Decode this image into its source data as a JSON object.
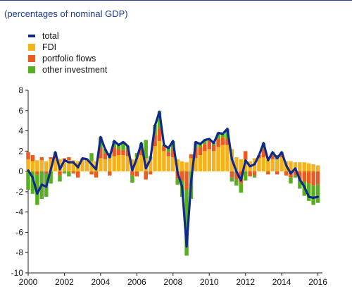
{
  "chart_data": {
    "type": "bar",
    "subtitle": "(percentages of nominal GDP)",
    "ylim": [
      -10,
      8
    ],
    "y_ticks": [
      8,
      6,
      4,
      2,
      0,
      -2,
      -4,
      -6,
      -8,
      -10
    ],
    "x_ticks": [
      "2000",
      "2002",
      "2004",
      "2006",
      "2008",
      "2010",
      "2012",
      "2014",
      "2016"
    ],
    "x_range": [
      2000.0,
      2016.25
    ],
    "grid": false,
    "stacked": true,
    "legend_position": "top-left",
    "x": [
      2000.0,
      2000.25,
      2000.5,
      2000.75,
      2001.0,
      2001.25,
      2001.5,
      2001.75,
      2002.0,
      2002.25,
      2002.5,
      2002.75,
      2003.0,
      2003.25,
      2003.5,
      2003.75,
      2004.0,
      2004.25,
      2004.5,
      2004.75,
      2005.0,
      2005.25,
      2005.5,
      2005.75,
      2006.0,
      2006.25,
      2006.5,
      2006.75,
      2007.0,
      2007.25,
      2007.5,
      2007.75,
      2008.0,
      2008.25,
      2008.5,
      2008.75,
      2009.0,
      2009.25,
      2009.5,
      2009.75,
      2010.0,
      2010.25,
      2010.5,
      2010.75,
      2011.0,
      2011.25,
      2011.5,
      2011.75,
      2012.0,
      2012.25,
      2012.5,
      2012.75,
      2013.0,
      2013.25,
      2013.5,
      2013.75,
      2014.0,
      2014.25,
      2014.5,
      2014.75,
      2015.0,
      2015.25,
      2015.5,
      2015.75,
      2016.0
    ],
    "series": [
      {
        "name": "total",
        "type": "line",
        "color": "#0f2a8a",
        "values": [
          0.1,
          -0.6,
          -2.2,
          -1.3,
          -1.5,
          0.2,
          1.9,
          0.2,
          1.1,
          0.9,
          0.9,
          0.4,
          1.3,
          1.2,
          0.7,
          0.2,
          3.4,
          2.2,
          1.4,
          3.0,
          2.6,
          2.9,
          2.5,
          0.1,
          1.3,
          2.8,
          0.3,
          1.2,
          4.5,
          5.9,
          2.6,
          2.3,
          3.0,
          -0.1,
          -1.5,
          -7.4,
          -1.0,
          2.9,
          2.7,
          3.1,
          3.2,
          2.8,
          3.8,
          3.7,
          4.2,
          1.2,
          0.0,
          -0.9,
          1.1,
          0.5,
          0.7,
          1.6,
          2.8,
          1.1,
          1.9,
          1.3,
          1.9,
          0.6,
          -0.2,
          0.3,
          -0.8,
          -1.5,
          -2.5,
          -2.6,
          -2.5
        ]
      },
      {
        "name": "FDI",
        "type": "bar",
        "color": "#f5b21c",
        "values": [
          1.2,
          1.0,
          1.1,
          1.1,
          1.0,
          1.2,
          1.3,
          1.2,
          1.1,
          1.1,
          1.1,
          1.0,
          1.1,
          1.1,
          1.0,
          1.0,
          1.3,
          1.2,
          1.3,
          1.5,
          1.6,
          1.6,
          1.5,
          1.2,
          1.4,
          1.6,
          1.3,
          1.2,
          2.5,
          3.0,
          2.0,
          1.5,
          1.4,
          1.2,
          1.0,
          0.9,
          1.3,
          1.3,
          1.6,
          2.0,
          2.2,
          2.0,
          2.4,
          2.6,
          2.6,
          2.2,
          1.4,
          1.2,
          1.2,
          1.0,
          1.3,
          1.3,
          1.4,
          1.4,
          1.2,
          1.2,
          1.4,
          1.0,
          1.0,
          0.9,
          0.9,
          0.9,
          0.8,
          0.7,
          0.6
        ]
      },
      {
        "name": "portfolio flows",
        "type": "bar",
        "color": "#ea5b1f",
        "values": [
          0.7,
          0.6,
          -0.3,
          0.3,
          -0.2,
          0.2,
          0.5,
          -0.4,
          0.2,
          0.3,
          -0.2,
          -0.6,
          0.2,
          0.1,
          -0.3,
          -0.6,
          1.0,
          0.6,
          -0.4,
          0.9,
          0.6,
          0.5,
          0.6,
          -0.4,
          -0.5,
          0.6,
          -0.8,
          -0.3,
          1.1,
          1.3,
          0.5,
          0.4,
          0.8,
          -0.7,
          -0.9,
          -1.8,
          0.4,
          1.0,
          0.8,
          0.7,
          0.8,
          0.6,
          0.8,
          0.8,
          0.6,
          -0.6,
          -0.8,
          -1.2,
          0.8,
          -0.5,
          -0.4,
          0.3,
          0.8,
          -0.3,
          0.4,
          -0.3,
          0.3,
          -0.4,
          -0.6,
          -0.4,
          -0.8,
          -1.0,
          -1.2,
          -1.4,
          -1.3
        ]
      },
      {
        "name": "other investment",
        "type": "bar",
        "color": "#57b01e",
        "values": [
          -1.8,
          -2.2,
          -3.0,
          -2.7,
          -2.3,
          -1.2,
          0.1,
          -0.6,
          -0.2,
          -0.5,
          0.0,
          0.0,
          0.0,
          0.0,
          0.8,
          0.0,
          1.1,
          0.4,
          0.5,
          0.6,
          0.4,
          0.8,
          0.4,
          -0.7,
          0.4,
          0.6,
          1.8,
          0.3,
          1.0,
          1.6,
          0.1,
          0.4,
          0.8,
          -0.6,
          -1.6,
          -6.5,
          -2.7,
          0.6,
          0.3,
          0.4,
          0.2,
          0.2,
          0.6,
          0.3,
          1.0,
          -0.4,
          -0.6,
          -0.9,
          -0.9,
          0.0,
          -0.2,
          0.0,
          0.6,
          0.0,
          0.3,
          0.4,
          0.2,
          0.0,
          -0.6,
          -0.2,
          -0.9,
          -1.4,
          -1.7,
          -1.9,
          -1.8
        ]
      }
    ]
  }
}
